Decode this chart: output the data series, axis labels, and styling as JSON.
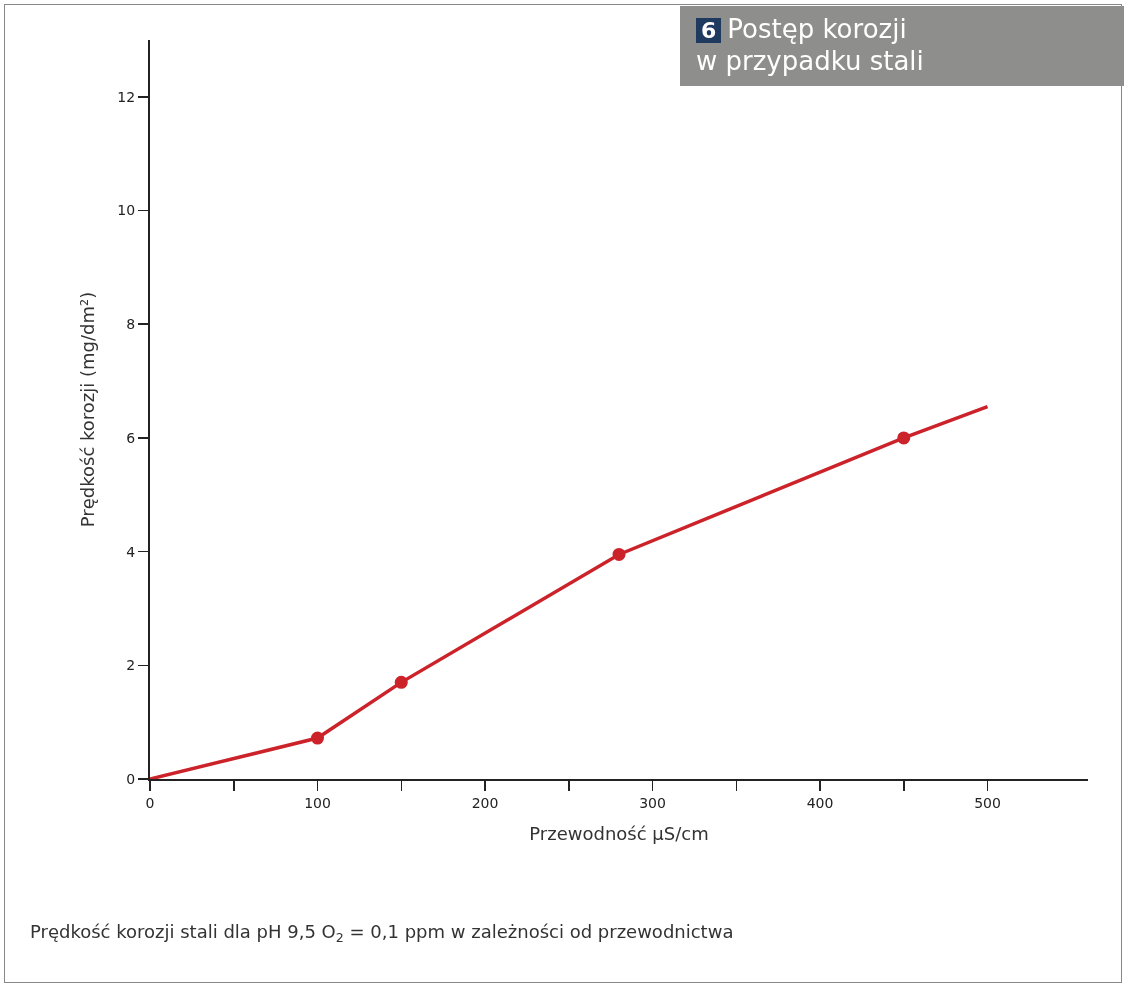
{
  "chart_data": {
    "type": "line",
    "title": "6 Postęp korozji\nw przypadku stali",
    "xlabel": "Przewodność μS/cm",
    "ylabel": "Prędkość korozji (mg/dm²)",
    "annotations": [
      "Prędkość korozji stali dla pH 9,5 O$_{2}$ = 0,1 ppm w zależności od przewodnictwa"
    ],
    "series": [
      {
        "type": "line",
        "color": "#cc2229",
        "marker": "none",
        "x": [
          0,
          100,
          150,
          280,
          450,
          500
        ],
        "values": [
          0,
          0.72,
          1.7,
          3.95,
          6.0,
          6.55
        ]
      },
      {
        "type": "scatter",
        "color": "#cc2229",
        "marker": "circle",
        "x": [
          100,
          150,
          280,
          450
        ],
        "values": [
          0.72,
          1.7,
          3.95,
          6.0
        ]
      }
    ],
    "xlim": [
      0,
      560
    ],
    "xticks": [
      0,
      {
        "value": 50,
        "label": null
      },
      100,
      {
        "value": 150,
        "label": null
      },
      200,
      {
        "value": 250,
        "label": null
      },
      300,
      {
        "value": 350,
        "label": null
      },
      400,
      {
        "value": 450,
        "label": null
      },
      500
    ],
    "ylim": [
      0,
      13
    ],
    "yticks": [
      0,
      2,
      4,
      6,
      8,
      10,
      12
    ],
    "grid": false
  }
}
